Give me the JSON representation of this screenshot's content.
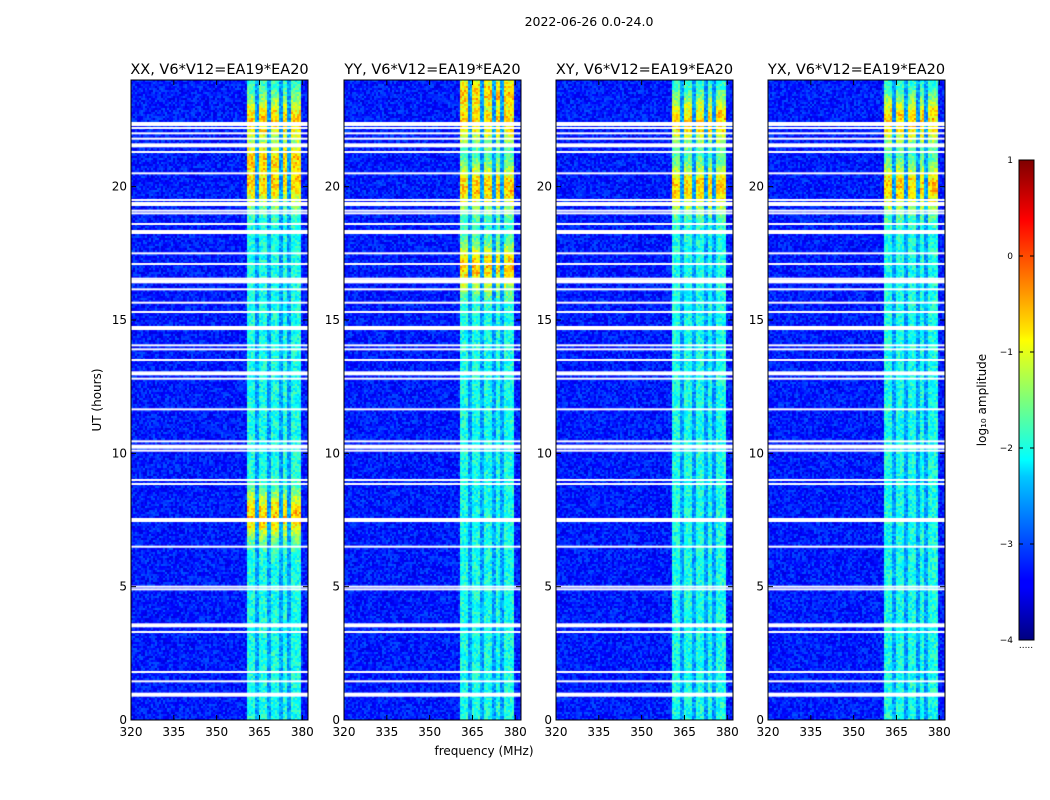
{
  "suptitle": "2022-06-26 0.0-24.0",
  "ylabel": "UT (hours)",
  "xlabel": "frequency (MHz)",
  "colorbar": {
    "label": "log₁₀ amplitude",
    "ticks": [
      1,
      0,
      -1,
      -2,
      -3,
      -4
    ],
    "tick_labels": [
      "1",
      "0",
      "−1",
      "−2",
      "−3",
      "−4"
    ],
    "range": [
      -4,
      1
    ],
    "colormap": "jet"
  },
  "chart_data": {
    "type": "heatmap",
    "title": "2022-06-26 0.0-24.0",
    "xlabel": "frequency (MHz)",
    "ylabel": "UT (hours)",
    "xlim": [
      320,
      382
    ],
    "ylim": [
      0,
      24
    ],
    "x_ticks": [
      320,
      335,
      350,
      365,
      380
    ],
    "y_ticks": [
      0,
      5,
      10,
      15,
      20
    ],
    "value_label": "log10 amplitude",
    "value_range": [
      -4,
      1
    ],
    "rfi_band_mhz": [
      360,
      379
    ],
    "rfi_subband_gaps_mhz": [
      363.5,
      368,
      372.5,
      375
    ],
    "flagged_hours": [
      0.95,
      1.45,
      1.8,
      3.3,
      3.55,
      4.9,
      5.0,
      6.5,
      7.5,
      8.85,
      9.0,
      10.1,
      10.25,
      10.45,
      11.65,
      12.8,
      13.0,
      13.5,
      13.9,
      14.05,
      14.7,
      15.3,
      15.65,
      16.15,
      16.45,
      16.55,
      17.1,
      17.5,
      18.3,
      18.6,
      19.0,
      19.1,
      19.35,
      19.5,
      20.5,
      21.3,
      21.55,
      21.8,
      22.0,
      22.2,
      22.35
    ],
    "panels": [
      {
        "title": "XX, V6*V12=EA19*EA20",
        "peak_hours": [
          7.7,
          20.2,
          21.0,
          22.5
        ]
      },
      {
        "title": "YY, V6*V12=EA19*EA20",
        "peak_hours": [
          17.0,
          20.0,
          22.5,
          23.5
        ]
      },
      {
        "title": "XY, V6*V12=EA19*EA20",
        "peak_hours": [
          20.0,
          22.5
        ]
      },
      {
        "title": "YX, V6*V12=EA19*EA20",
        "peak_hours": [
          20.0,
          22.5
        ]
      }
    ]
  }
}
